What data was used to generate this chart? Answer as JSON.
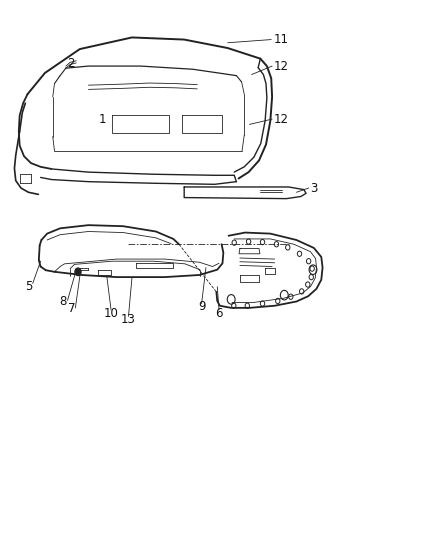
{
  "background_color": "#ffffff",
  "line_color": "#222222",
  "label_color": "#111111",
  "label_fontsize": 8.5,
  "fig_width": 4.38,
  "fig_height": 5.33,
  "dpi": 100
}
